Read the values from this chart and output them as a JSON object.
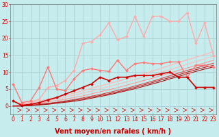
{
  "xlabel": "Vent moyen/en rafales ( km/h )",
  "xlim": [
    0,
    23
  ],
  "ylim": [
    0,
    30
  ],
  "yticks": [
    0,
    5,
    10,
    15,
    20,
    25,
    30
  ],
  "xticks": [
    0,
    1,
    2,
    3,
    4,
    5,
    6,
    7,
    8,
    9,
    10,
    11,
    12,
    13,
    14,
    15,
    16,
    17,
    18,
    19,
    20,
    21,
    22,
    23
  ],
  "bg_color": "#c6eced",
  "grid_color": "#a0cccc",
  "lines": [
    {
      "x": [
        0,
        1,
        2,
        3,
        4,
        5,
        6,
        7,
        8,
        9,
        10,
        11,
        12,
        13,
        14,
        15,
        16,
        17,
        18,
        19,
        20,
        21,
        22,
        23
      ],
      "y": [
        0.0,
        0.5,
        1.0,
        1.5,
        2.0,
        2.6,
        3.2,
        3.8,
        4.5,
        5.2,
        5.9,
        6.6,
        7.3,
        8.0,
        8.7,
        9.5,
        10.3,
        11.1,
        12.0,
        12.8,
        13.6,
        14.4,
        15.2,
        16.0
      ],
      "color": "#ffbbbb",
      "lw": 1.0,
      "marker": null,
      "ms": 0,
      "zorder": 2
    },
    {
      "x": [
        0,
        1,
        2,
        3,
        4,
        5,
        6,
        7,
        8,
        9,
        10,
        11,
        12,
        13,
        14,
        15,
        16,
        17,
        18,
        19,
        20,
        21,
        22,
        23
      ],
      "y": [
        0.0,
        0.3,
        0.7,
        1.1,
        1.6,
        2.1,
        2.6,
        3.2,
        3.8,
        4.4,
        5.1,
        5.7,
        6.4,
        7.1,
        7.8,
        8.5,
        9.2,
        10.0,
        10.7,
        11.5,
        12.3,
        13.1,
        13.9,
        14.7
      ],
      "color": "#ffbbbb",
      "lw": 0.8,
      "marker": null,
      "ms": 0,
      "zorder": 2
    },
    {
      "x": [
        0,
        1,
        2,
        3,
        4,
        5,
        6,
        7,
        8,
        9,
        10,
        11,
        12,
        13,
        14,
        15,
        16,
        17,
        18,
        19,
        20,
        21,
        22,
        23
      ],
      "y": [
        0.0,
        0.2,
        0.5,
        0.8,
        1.2,
        1.6,
        2.0,
        2.5,
        3.0,
        3.6,
        4.2,
        4.8,
        5.4,
        6.1,
        6.8,
        7.5,
        8.2,
        9.0,
        9.7,
        10.5,
        11.2,
        12.0,
        12.7,
        13.5
      ],
      "color": "#ff9999",
      "lw": 0.8,
      "marker": null,
      "ms": 0,
      "zorder": 2
    },
    {
      "x": [
        0,
        1,
        2,
        3,
        4,
        5,
        6,
        7,
        8,
        9,
        10,
        11,
        12,
        13,
        14,
        15,
        16,
        17,
        18,
        19,
        20,
        21,
        22,
        23
      ],
      "y": [
        0.0,
        0.1,
        0.3,
        0.5,
        0.8,
        1.1,
        1.5,
        1.9,
        2.4,
        2.9,
        3.4,
        4.0,
        4.6,
        5.2,
        5.9,
        6.6,
        7.3,
        8.1,
        8.9,
        9.7,
        10.5,
        11.2,
        11.9,
        12.6
      ],
      "color": "#dd4444",
      "lw": 0.8,
      "marker": null,
      "ms": 0,
      "zorder": 2
    },
    {
      "x": [
        0,
        1,
        2,
        3,
        4,
        5,
        6,
        7,
        8,
        9,
        10,
        11,
        12,
        13,
        14,
        15,
        16,
        17,
        18,
        19,
        20,
        21,
        22,
        23
      ],
      "y": [
        0.0,
        0.0,
        0.2,
        0.4,
        0.7,
        1.0,
        1.3,
        1.7,
        2.1,
        2.6,
        3.1,
        3.6,
        4.2,
        4.8,
        5.5,
        6.2,
        6.9,
        7.7,
        8.4,
        9.2,
        10.0,
        10.7,
        11.4,
        12.0
      ],
      "color": "#bb2222",
      "lw": 0.8,
      "marker": null,
      "ms": 0,
      "zorder": 2
    },
    {
      "x": [
        0,
        1,
        2,
        3,
        4,
        5,
        6,
        7,
        8,
        9,
        10,
        11,
        12,
        13,
        14,
        15,
        16,
        17,
        18,
        19,
        20,
        21,
        22,
        23
      ],
      "y": [
        0.0,
        0.0,
        0.1,
        0.3,
        0.5,
        0.8,
        1.1,
        1.4,
        1.8,
        2.3,
        2.8,
        3.3,
        3.9,
        4.5,
        5.1,
        5.8,
        6.5,
        7.2,
        8.0,
        8.7,
        9.5,
        10.2,
        10.9,
        11.5
      ],
      "color": "#aa1111",
      "lw": 0.8,
      "marker": null,
      "ms": 0,
      "zorder": 2
    },
    {
      "x": [
        0,
        1,
        2,
        3,
        4,
        5,
        6,
        7,
        8,
        9,
        10,
        11,
        12,
        13,
        14,
        15,
        16,
        17,
        18,
        19,
        20,
        21,
        22,
        23
      ],
      "y": [
        1.5,
        0.5,
        1.2,
        2.0,
        5.5,
        6.0,
        7.5,
        10.5,
        18.5,
        19.0,
        21.0,
        24.5,
        19.5,
        20.5,
        26.5,
        20.5,
        26.5,
        26.5,
        25.0,
        25.0,
        27.5,
        18.5,
        24.5,
        15.0
      ],
      "color": "#ffaaaa",
      "lw": 1.0,
      "marker": "D",
      "ms": 2.0,
      "zorder": 4
    },
    {
      "x": [
        0,
        1,
        2,
        3,
        4,
        5,
        6,
        7,
        8,
        9,
        10,
        11,
        12,
        13,
        14,
        15,
        16,
        17,
        18,
        19,
        20,
        21,
        22,
        23
      ],
      "y": [
        6.5,
        1.0,
        1.5,
        5.5,
        11.5,
        5.0,
        4.5,
        8.0,
        10.5,
        11.0,
        10.5,
        10.2,
        13.5,
        10.5,
        12.5,
        12.8,
        12.5,
        12.5,
        13.0,
        13.0,
        8.5,
        12.0,
        12.0,
        11.5
      ],
      "color": "#ff7777",
      "lw": 1.0,
      "marker": "D",
      "ms": 2.0,
      "zorder": 4
    },
    {
      "x": [
        0,
        1,
        2,
        3,
        4,
        5,
        6,
        7,
        8,
        9,
        10,
        11,
        12,
        13,
        14,
        15,
        16,
        17,
        18,
        19,
        20,
        21,
        22,
        23
      ],
      "y": [
        1.5,
        0.2,
        0.5,
        1.0,
        1.8,
        2.5,
        3.5,
        4.5,
        5.5,
        6.5,
        8.5,
        7.5,
        8.5,
        8.5,
        9.0,
        9.0,
        9.0,
        9.5,
        10.0,
        8.5,
        8.5,
        5.5,
        5.5,
        5.5
      ],
      "color": "#cc0000",
      "lw": 1.2,
      "marker": "D",
      "ms": 2.0,
      "zorder": 5
    }
  ],
  "xlabel_color": "#cc0000",
  "xlabel_fontsize": 7,
  "tick_color": "#cc0000",
  "tick_fontsize": 5.5
}
